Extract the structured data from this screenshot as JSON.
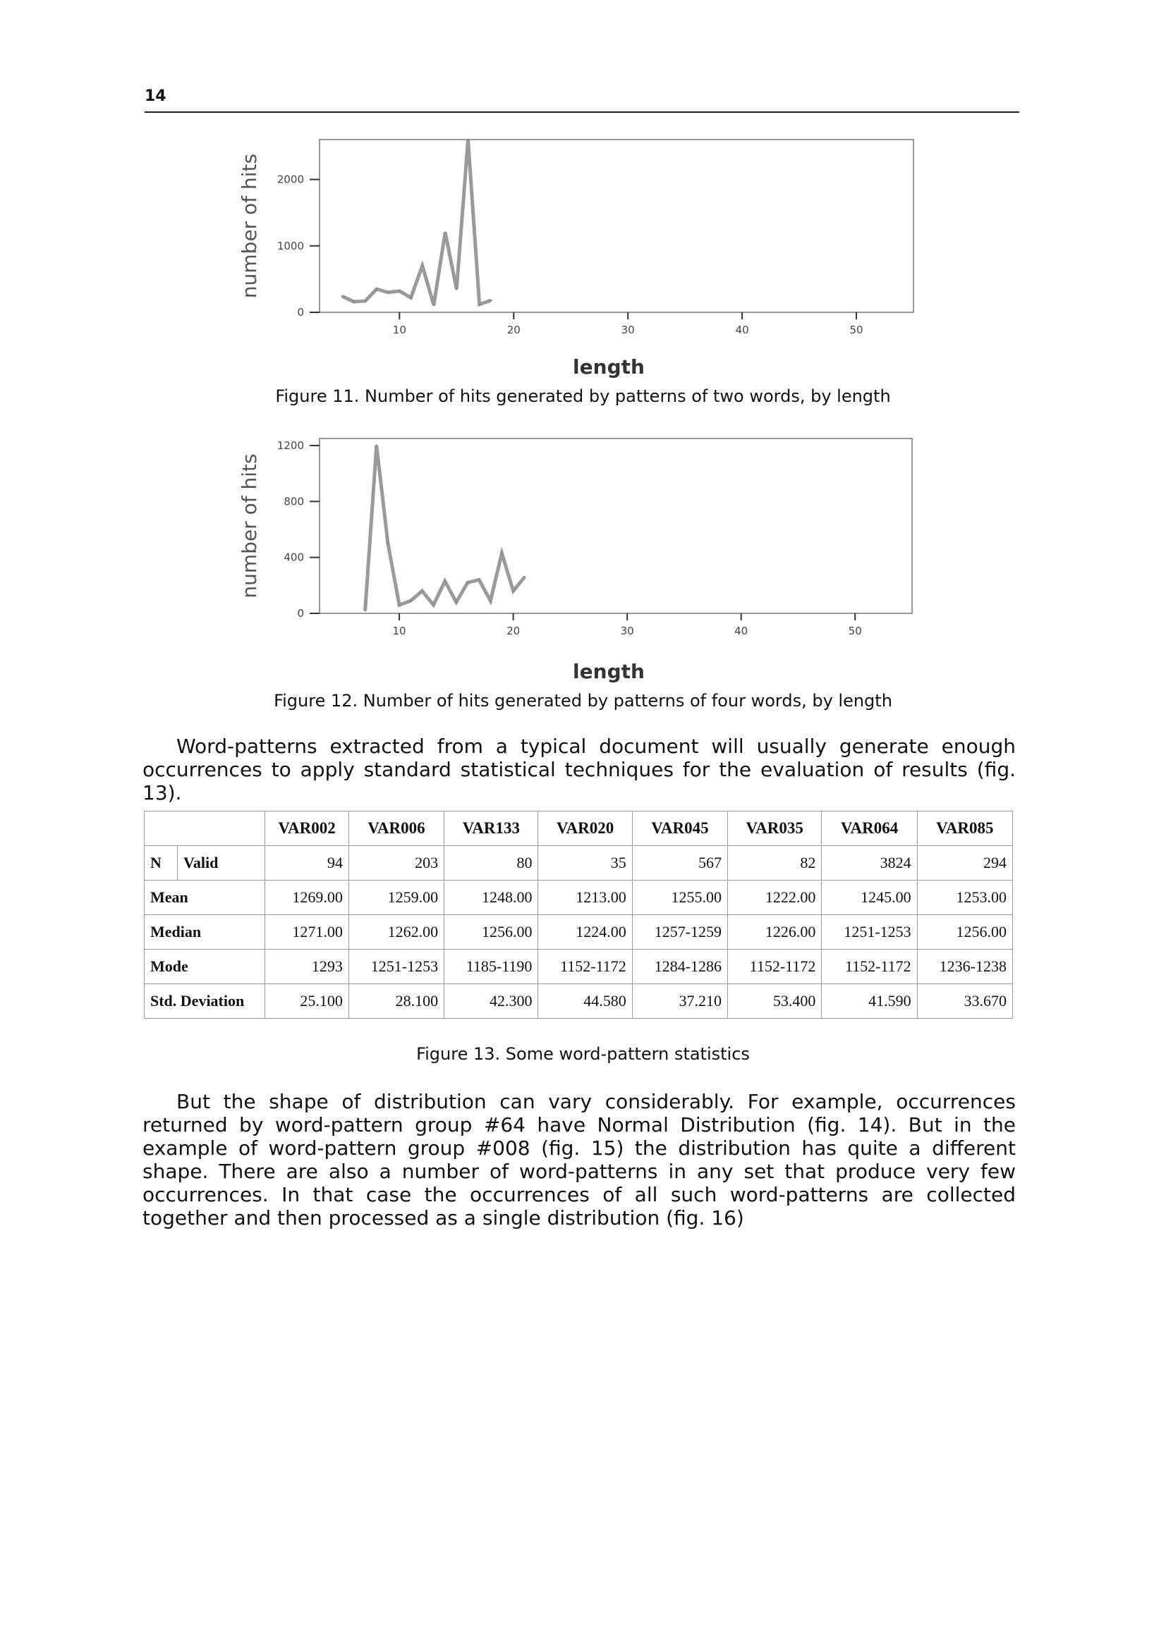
{
  "header": {
    "page_number": "14"
  },
  "figures": [
    {
      "caption": "Figure 11. Number of hits generated by patterns of two words, by length",
      "chart_data": {
        "type": "line",
        "xlabel": "length",
        "ylabel": "number of hits",
        "xlim": [
          3,
          55
        ],
        "ylim": [
          0,
          2600
        ],
        "xticks": [
          "10",
          "20",
          "30",
          "40",
          "50"
        ],
        "yticks": [
          "0",
          "1000",
          "2000"
        ],
        "x": [
          5,
          6,
          7,
          8,
          9,
          10,
          11,
          12,
          13,
          14,
          15,
          16,
          17,
          18
        ],
        "series": [
          {
            "values": [
              240,
              160,
              170,
              350,
              300,
              320,
              220,
              700,
              110,
              1200,
              350,
              2600,
              120,
              180
            ]
          }
        ]
      }
    },
    {
      "caption": "Figure 12. Number of hits generated by patterns of four words, by length",
      "chart_data": {
        "type": "line",
        "xlabel": "length",
        "ylabel": "number of hits",
        "xlim": [
          3,
          55
        ],
        "ylim": [
          0,
          1250
        ],
        "xticks": [
          "10",
          "20",
          "30",
          "40",
          "50"
        ],
        "yticks": [
          "0",
          "400",
          "800",
          "1200"
        ],
        "x": [
          7,
          8,
          9,
          10,
          11,
          12,
          13,
          14,
          15,
          16,
          17,
          18,
          19,
          20,
          21
        ],
        "series": [
          {
            "values": [
              20,
              1200,
              500,
              60,
              90,
              160,
              60,
              230,
              80,
              220,
              240,
              90,
              430,
              160,
              260
            ]
          }
        ]
      }
    }
  ],
  "paragraph1": "Word-patterns extracted from a typical document will usually generate enough occurrences to apply standard statistical techniques for the evaluation of results (fig. 13).",
  "table": {
    "caption": "Figure 13. Some word-pattern statistics",
    "columns": [
      "VAR002",
      "VAR006",
      "VAR133",
      "VAR020",
      "VAR045",
      "VAR035",
      "VAR064",
      "VAR085"
    ],
    "rows": [
      {
        "label1": "N",
        "label2": "Valid",
        "values": [
          "94",
          "203",
          "80",
          "35",
          "567",
          "82",
          "3824",
          "294"
        ]
      },
      {
        "label": "Mean",
        "values": [
          "1269.00",
          "1259.00",
          "1248.00",
          "1213.00",
          "1255.00",
          "1222.00",
          "1245.00",
          "1253.00"
        ]
      },
      {
        "label": "Median",
        "values": [
          "1271.00",
          "1262.00",
          "1256.00",
          "1224.00",
          "1257-1259",
          "1226.00",
          "1251-1253",
          "1256.00"
        ]
      },
      {
        "label": "Mode",
        "values": [
          "1293",
          "1251-1253",
          "1185-1190",
          "1152-1172",
          "1284-1286",
          "1152-1172",
          "1152-1172",
          "1236-1238"
        ]
      },
      {
        "label": "Std. Deviation",
        "values": [
          "25.100",
          "28.100",
          "42.300",
          "44.580",
          "37.210",
          "53.400",
          "41.590",
          "33.670"
        ]
      }
    ]
  },
  "paragraph2": "But the shape of distribution can vary considerably. For example, occurrences returned by word-pattern group #64 have Normal Distribution (fig. 14). But in the example of word-pattern group #008 (fig. 15) the distribution has quite a different shape. There are also a number of word-patterns in any set that produce very few occurrences. In that case the occurrences of all such word-patterns are collected together and then processed as a single distribution (fig. 16)"
}
